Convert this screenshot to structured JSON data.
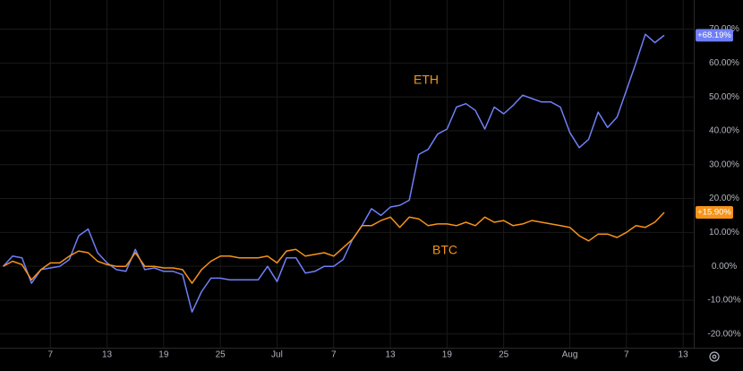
{
  "chart_data": {
    "type": "line",
    "categories": [
      null,
      null,
      null,
      null,
      null,
      "7",
      null,
      null,
      null,
      null,
      null,
      "13",
      null,
      null,
      null,
      null,
      null,
      "19",
      null,
      null,
      null,
      null,
      null,
      "25",
      null,
      null,
      null,
      null,
      null,
      "Jul",
      null,
      null,
      null,
      null,
      null,
      "7",
      null,
      null,
      null,
      null,
      null,
      "13",
      null,
      null,
      null,
      null,
      null,
      "19",
      null,
      null,
      null,
      null,
      null,
      "25",
      null,
      null,
      null,
      null,
      null,
      null,
      "Aug",
      null,
      null,
      null,
      null,
      null,
      "7",
      null,
      null,
      null,
      null,
      null,
      "13"
    ],
    "series": [
      {
        "name": "ETH",
        "color": "#6f7ff7",
        "values": [
          0,
          3,
          2.5,
          -5,
          -1,
          -0.5,
          0,
          2,
          9,
          11,
          4,
          1,
          -1,
          -1.5,
          5,
          -1,
          -0.5,
          -1.5,
          -1.5,
          -2.5,
          -13.5,
          -7.5,
          -3.5,
          -3.5,
          -4,
          -4,
          -4,
          -4,
          0,
          -4.5,
          2.5,
          2.5,
          -2,
          -1.5,
          0,
          0,
          2,
          8,
          12,
          17,
          15,
          17.5,
          18,
          19.5,
          33,
          34.5,
          39,
          40.5,
          47,
          48,
          46,
          40.5,
          47,
          45,
          47.5,
          50.5,
          49.5,
          48.5,
          48.5,
          47,
          39.5,
          35,
          37.5,
          45.5,
          41,
          44,
          52,
          60,
          68.5,
          66,
          68.19,
          null,
          null
        ],
        "value_labels": [
          null,
          null,
          null,
          null,
          null,
          null,
          null,
          null,
          null,
          null,
          null,
          null,
          null,
          null,
          null,
          null,
          null,
          null,
          null,
          null,
          null,
          null,
          null,
          null,
          null,
          null,
          null,
          null,
          null,
          null,
          null,
          null,
          null,
          null,
          null,
          null,
          null,
          null,
          null,
          null,
          null,
          null,
          null,
          null,
          null,
          null,
          null,
          null,
          null,
          null,
          null,
          null,
          null,
          null,
          null,
          null,
          null,
          null,
          null,
          null,
          null,
          null,
          null,
          null,
          null,
          null,
          null,
          null,
          null,
          null,
          "+68.19%",
          null,
          null
        ]
      },
      {
        "name": "BTC",
        "color": "#f7931a",
        "values": [
          0,
          1.5,
          0.5,
          -4,
          -1,
          1,
          1,
          3,
          4.5,
          4,
          1.5,
          0.5,
          0,
          0,
          4,
          0,
          0,
          -0.5,
          -0.5,
          -1,
          -5,
          -1,
          1.5,
          3,
          3,
          2.5,
          2.5,
          2.5,
          3,
          1,
          4.5,
          5,
          3,
          3.5,
          4,
          3,
          5.5,
          8,
          12,
          12,
          13.5,
          14.5,
          11.5,
          14.5,
          14,
          12,
          12.5,
          12.5,
          12,
          13,
          12,
          14.5,
          13,
          13.5,
          12,
          12.5,
          13.5,
          13,
          12.5,
          12,
          11.5,
          9,
          7.5,
          9.5,
          9.5,
          8.5,
          10,
          12,
          11.5,
          13,
          15.9,
          null,
          null
        ],
        "value_labels": [
          null,
          null,
          null,
          null,
          null,
          null,
          null,
          null,
          null,
          null,
          null,
          null,
          null,
          null,
          null,
          null,
          null,
          null,
          null,
          null,
          null,
          null,
          null,
          null,
          null,
          null,
          null,
          null,
          null,
          null,
          null,
          null,
          null,
          null,
          null,
          null,
          null,
          null,
          null,
          null,
          null,
          null,
          null,
          null,
          null,
          null,
          null,
          null,
          null,
          null,
          null,
          null,
          null,
          null,
          null,
          null,
          null,
          null,
          null,
          null,
          null,
          null,
          null,
          null,
          null,
          null,
          null,
          null,
          null,
          null,
          "+15.90%",
          null,
          null
        ]
      }
    ],
    "ylim": [
      -23.5,
      78.6
    ],
    "yticks": [
      {
        "value": -20,
        "label": "-20.00%"
      },
      {
        "value": -10,
        "label": "-10.00%"
      },
      {
        "value": 0,
        "label": "0.00%"
      },
      {
        "value": 10,
        "label": "10.00%"
      },
      {
        "value": 20,
        "label": "20.00%"
      },
      {
        "value": 30,
        "label": "30.00%"
      },
      {
        "value": 40,
        "label": "40.00%"
      },
      {
        "value": 50,
        "label": "50.00%"
      },
      {
        "value": 60,
        "label": "60.00%"
      },
      {
        "value": 70,
        "label": "70.00%"
      }
    ],
    "grid": true
  }
}
